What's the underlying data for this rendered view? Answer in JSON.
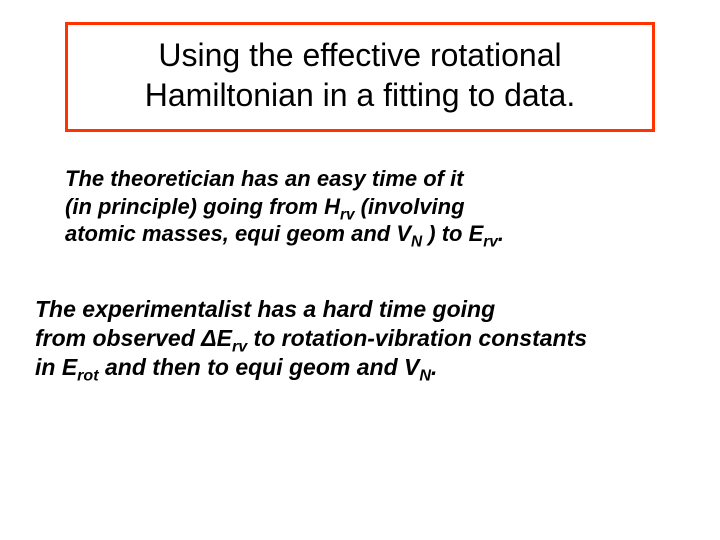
{
  "colors": {
    "title_border": "#ff3300",
    "text": "#000000",
    "background": "#ffffff"
  },
  "title": {
    "line1": "Using the effective rotational",
    "line2": "Hamiltonian in a fitting to data."
  },
  "para1": {
    "l1_a": "The theoretician has an easy time of it",
    "l2_a": "(in principle) going from H",
    "l2_sub1": "rv",
    "l2_b": " (involving",
    "l3_a": "atomic masses, equi geom and V",
    "l3_sub1": "N",
    "l3_b": " ) to E",
    "l3_sub2": "rv",
    "l3_c": "."
  },
  "para2": {
    "l1_a": "The experimentalist has a hard time going",
    "l2_a": "from observed ΔE",
    "l2_sub1": "rv",
    "l2_b": " to rotation-vibration constants",
    "l3_a": "in E",
    "l3_sub1": "rot",
    "l3_b": " and then to equi geom and V",
    "l3_sub2": "N",
    "l3_c": "."
  }
}
